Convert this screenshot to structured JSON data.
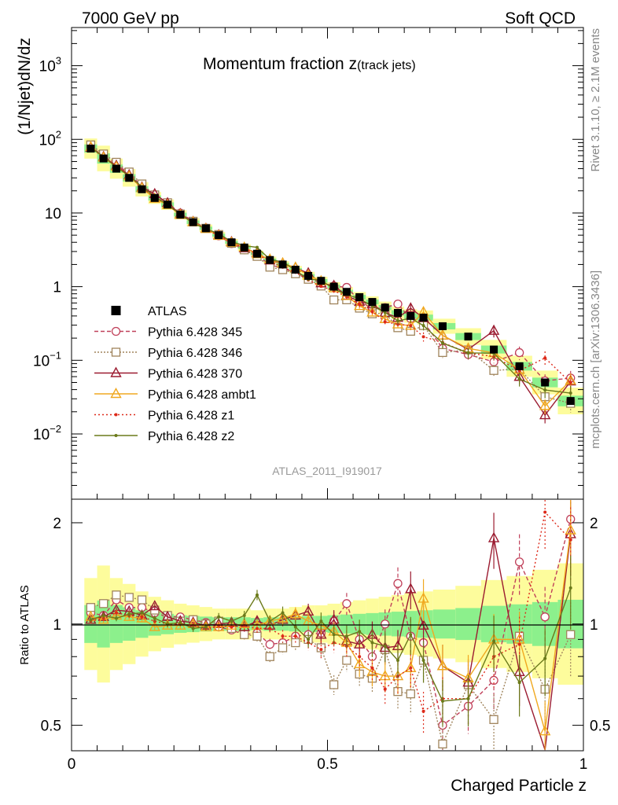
{
  "header": {
    "energy": "7000 GeV pp",
    "process": "Soft QCD",
    "plot_title": "Momentum fraction z",
    "plot_title_sub": "(track jets)",
    "analysis_id": "ATLAS_2011_I919017",
    "side_rivet": "Rivet 3.1.10, ≥ 2.1M events",
    "side_site": "mcplots.cern.ch [arXiv:1306.3436]"
  },
  "axes": {
    "ylabel_main": "(1/Njet)dN/dz",
    "ylabel_ratio": "Ratio to ATLAS",
    "xlabel": "Charged Particle z",
    "main_yticks": [
      {
        "value": 0.01,
        "label": "10",
        "exp": "−2"
      },
      {
        "value": 0.1,
        "label": "10",
        "exp": "−1"
      },
      {
        "value": 1,
        "label": "1",
        "exp": ""
      },
      {
        "value": 10,
        "label": "10",
        "exp": ""
      },
      {
        "value": 100,
        "label": "10",
        "exp": "2"
      },
      {
        "value": 1000,
        "label": "10",
        "exp": "3"
      }
    ],
    "ratio_yticks": [
      {
        "value": 0.5,
        "label": "0.5"
      },
      {
        "value": 1,
        "label": "1"
      },
      {
        "value": 2,
        "label": "2"
      }
    ],
    "xticks": [
      {
        "value": 0,
        "label": "0"
      },
      {
        "value": 0.5,
        "label": "0.5"
      },
      {
        "value": 1,
        "label": "1"
      }
    ]
  },
  "chart_data": {
    "type": "scatter",
    "x_scale": "linear",
    "y_scale": "log",
    "xlim": [
      0,
      1.0
    ],
    "ylim": [
      0.0013,
      3300
    ],
    "ratio_ylim": [
      0.42,
      2.35
    ],
    "x": [
      0.0375,
      0.0625,
      0.0875,
      0.1125,
      0.1375,
      0.1625,
      0.1875,
      0.2125,
      0.2375,
      0.2625,
      0.2875,
      0.3125,
      0.3375,
      0.3625,
      0.3875,
      0.4125,
      0.4375,
      0.4625,
      0.4875,
      0.5125,
      0.5375,
      0.5625,
      0.5875,
      0.6125,
      0.6375,
      0.6625,
      0.6875,
      0.725,
      0.775,
      0.825,
      0.875,
      0.925,
      0.975
    ],
    "data": {
      "name": "ATLAS",
      "values": [
        75,
        55,
        40,
        30,
        21,
        16,
        13,
        9.5,
        7.5,
        6.2,
        5.0,
        4.0,
        3.4,
        2.8,
        2.3,
        2.0,
        1.7,
        1.4,
        1.2,
        1.0,
        0.85,
        0.72,
        0.62,
        0.52,
        0.44,
        0.4,
        0.38,
        0.29,
        0.21,
        0.14,
        0.083,
        0.05,
        0.028
      ],
      "band_outer": [
        0.73,
        0.67,
        0.73,
        0.76,
        0.8,
        0.83,
        0.85,
        0.87,
        0.88,
        0.89,
        0.9,
        0.9,
        0.9,
        0.91,
        0.9,
        0.9,
        0.89,
        0.88,
        0.88,
        0.87,
        0.86,
        0.85,
        0.84,
        0.83,
        0.82,
        0.81,
        0.8,
        0.79,
        0.77,
        0.74,
        0.72,
        0.69,
        0.66
      ]
    },
    "series": [
      {
        "name": "Pythia 6.428 345",
        "color": "#c0405a",
        "marker": "circle",
        "dash": "5,3",
        "ratio": [
          1.08,
          1.06,
          1.18,
          1.12,
          1.12,
          1.08,
          1.05,
          1.05,
          1.03,
          1.01,
          0.98,
          0.96,
          0.93,
          0.94,
          0.87,
          0.88,
          0.92,
          0.93,
          0.94,
          1.02,
          1.15,
          0.9,
          0.8,
          1.0,
          1.32,
          0.92,
          0.88,
          0.5,
          0.57,
          0.68,
          1.53,
          1.05,
          2.05
        ]
      },
      {
        "name": "Pythia 6.428 346",
        "color": "#a0845c",
        "marker": "square",
        "dash": "2,2",
        "ratio": [
          1.12,
          1.15,
          1.22,
          1.2,
          1.18,
          1.1,
          1.06,
          1.02,
          1.03,
          1.0,
          1.02,
          0.97,
          0.93,
          0.92,
          0.8,
          0.85,
          0.88,
          0.9,
          0.85,
          0.66,
          0.78,
          0.71,
          0.69,
          0.84,
          0.63,
          0.62,
          0.78,
          0.44,
          0.66,
          0.52,
          0.92,
          0.64,
          0.93
        ]
      },
      {
        "name": "Pythia 6.428 370",
        "color": "#9b1b30",
        "marker": "triangle",
        "dash": "",
        "ratio": [
          1.03,
          1.05,
          1.1,
          1.09,
          1.06,
          1.13,
          1.05,
          1.02,
          1.01,
          0.99,
          1.0,
          1.01,
          0.98,
          1.02,
          0.99,
          1.03,
          1.06,
          1.09,
          0.93,
          1.03,
          0.89,
          0.87,
          0.93,
          0.85,
          0.86,
          1.27,
          0.99,
          0.75,
          0.67,
          1.8,
          0.72,
          0.36,
          1.85
        ]
      },
      {
        "name": "Pythia 6.428 ambt1",
        "color": "#f0a820",
        "marker": "triangle",
        "dash": "",
        "ratio": [
          1.05,
          1.03,
          1.06,
          1.05,
          1.04,
          0.98,
          0.99,
          0.99,
          1.0,
          0.98,
          0.98,
          0.99,
          1.0,
          0.99,
          1.02,
          1.04,
          1.07,
          1.02,
          0.99,
          0.95,
          0.88,
          0.76,
          0.72,
          0.7,
          0.7,
          0.74,
          1.19,
          0.75,
          0.69,
          0.9,
          0.9,
          0.48,
          1.9
        ]
      },
      {
        "name": "Pythia 6.428 z1",
        "color": "#dd2a1a",
        "marker": "dot",
        "dash": "2,3",
        "ratio": [
          1.02,
          1.04,
          1.08,
          1.06,
          1.05,
          1.02,
          1.0,
          1.0,
          0.99,
          0.97,
          0.99,
          0.98,
          0.99,
          0.97,
          0.97,
          0.92,
          0.92,
          0.88,
          0.84,
          0.88,
          0.86,
          0.8,
          0.74,
          0.64,
          0.7,
          0.74,
          0.55,
          0.6,
          0.6,
          0.8,
          0.87,
          2.15,
          1.78
        ]
      },
      {
        "name": "Pythia 6.428 z2",
        "color": "#6b7a1a",
        "marker": "dot",
        "dash": "",
        "ratio": [
          1.03,
          1.06,
          1.04,
          1.07,
          1.08,
          1.04,
          1.0,
          1.01,
          0.97,
          0.98,
          1.05,
          1.02,
          1.06,
          1.22,
          1.02,
          1.08,
          0.98,
          0.9,
          1.02,
          0.93,
          0.92,
          0.95,
          0.88,
          0.86,
          0.78,
          0.93,
          0.78,
          0.59,
          0.6,
          0.89,
          0.67,
          0.79,
          1.28
        ]
      }
    ]
  }
}
